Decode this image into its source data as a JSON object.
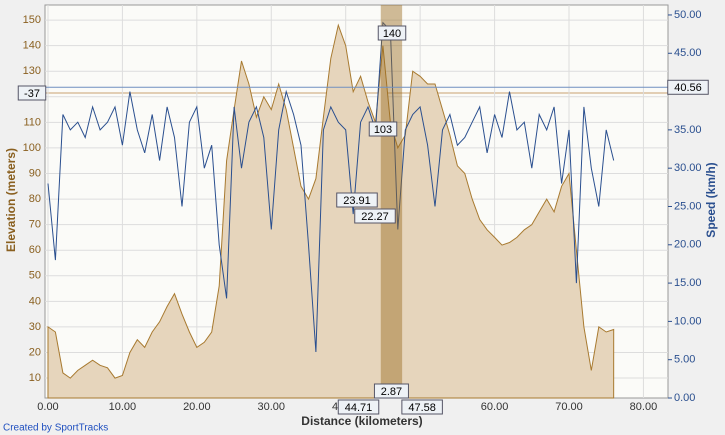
{
  "chart_data": {
    "type": "line",
    "x_label": "Distance (kilometers)",
    "y_label": "Elevation (meters)",
    "y2_label": "Speed (km/h)",
    "footer": "Created by SportTracks",
    "x": [
      0,
      1,
      2,
      3,
      4,
      5,
      6,
      7,
      8,
      9,
      10,
      11,
      12,
      13,
      14,
      15,
      16,
      17,
      18,
      19,
      20,
      21,
      22,
      23,
      24,
      25,
      26,
      27,
      28,
      29,
      30,
      31,
      32,
      33,
      34,
      35,
      36,
      37,
      38,
      39,
      40,
      41,
      42,
      43,
      44,
      45,
      46,
      47,
      48,
      49,
      50,
      51,
      52,
      53,
      54,
      55,
      56,
      57,
      58,
      59,
      60,
      61,
      62,
      63,
      64,
      65,
      66,
      67,
      68,
      69,
      70,
      71,
      72,
      73,
      74,
      75,
      76
    ],
    "series": [
      {
        "name": "Elevation",
        "color": "#a87a30",
        "fill": "#e6d5bc",
        "values": [
          30,
          28,
          12,
          10,
          13,
          15,
          17,
          15,
          14,
          10,
          11,
          20,
          25,
          22,
          28,
          32,
          38,
          43,
          35,
          28,
          22,
          24,
          28,
          46,
          95,
          115,
          134,
          125,
          112,
          120,
          115,
          125,
          115,
          100,
          85,
          80,
          88,
          112,
          135,
          148,
          140,
          122,
          128,
          118,
          110,
          140,
          110,
          100,
          105,
          130,
          128,
          125,
          125,
          115,
          105,
          93,
          90,
          80,
          72,
          68,
          65,
          62,
          63,
          65,
          68,
          70,
          75,
          80,
          75,
          85,
          90,
          60,
          30,
          13,
          30,
          28,
          29
        ]
      },
      {
        "name": "Speed",
        "color": "#2a4f8f",
        "axis": "y2",
        "values": [
          28,
          18,
          37,
          35,
          36,
          34,
          38,
          35,
          36,
          38,
          33,
          40,
          35,
          32,
          37,
          31,
          38,
          34,
          25,
          36,
          38,
          30,
          33,
          20,
          13,
          38,
          30,
          36,
          38,
          34,
          22,
          35,
          40,
          37,
          33,
          20,
          6,
          35,
          38,
          36,
          35,
          24,
          36,
          38,
          35,
          49,
          48,
          22,
          35,
          37,
          38,
          33,
          25,
          35,
          37,
          33,
          34,
          36,
          38,
          32,
          37,
          34,
          40,
          35,
          36,
          30,
          37,
          35,
          38,
          28,
          35,
          15,
          38,
          30,
          25,
          35,
          31
        ]
      }
    ],
    "xlim": [
      -0.4,
      83.3
    ],
    "xticks": [
      {
        "value": 0,
        "label": "0.00"
      },
      {
        "value": 10,
        "label": "10.00"
      },
      {
        "value": 20,
        "label": "20.00"
      },
      {
        "value": 30,
        "label": "30.00"
      },
      {
        "value": 40,
        "label": "40.00"
      },
      {
        "value": 50,
        "label": "50.00"
      },
      {
        "value": 60,
        "label": "60.00"
      },
      {
        "value": 70,
        "label": "70.00"
      },
      {
        "value": 80,
        "label": "80.00"
      }
    ],
    "ylim": [
      2.2,
      155.9
    ],
    "yticks": [
      10,
      20,
      30,
      40,
      50,
      60,
      70,
      80,
      90,
      100,
      110,
      120,
      130,
      140,
      150
    ],
    "y2lim": [
      0,
      51.3
    ],
    "y2ticks": [
      {
        "value": 0,
        "label": "0.00"
      },
      {
        "value": 5,
        "label": "5.00"
      },
      {
        "value": 10,
        "label": "10.00"
      },
      {
        "value": 15,
        "label": "15.00"
      },
      {
        "value": 20,
        "label": "20.00"
      },
      {
        "value": 25,
        "label": "25.00"
      },
      {
        "value": 30,
        "label": "30.00"
      },
      {
        "value": 35,
        "label": "35.00"
      },
      {
        "value": 40,
        "label": "40.00"
      },
      {
        "value": 45,
        "label": "45.00"
      },
      {
        "value": 50,
        "label": "50.00"
      }
    ],
    "grid": true,
    "selection": {
      "start": 44.71,
      "end": 47.58,
      "distance": 2.87
    },
    "markers": {
      "elevation_start": 140,
      "elevation_end": 103,
      "elevation_change": -37,
      "speed_start": 23.91,
      "speed_end": 22.27,
      "speed_reference": 40.56
    }
  }
}
